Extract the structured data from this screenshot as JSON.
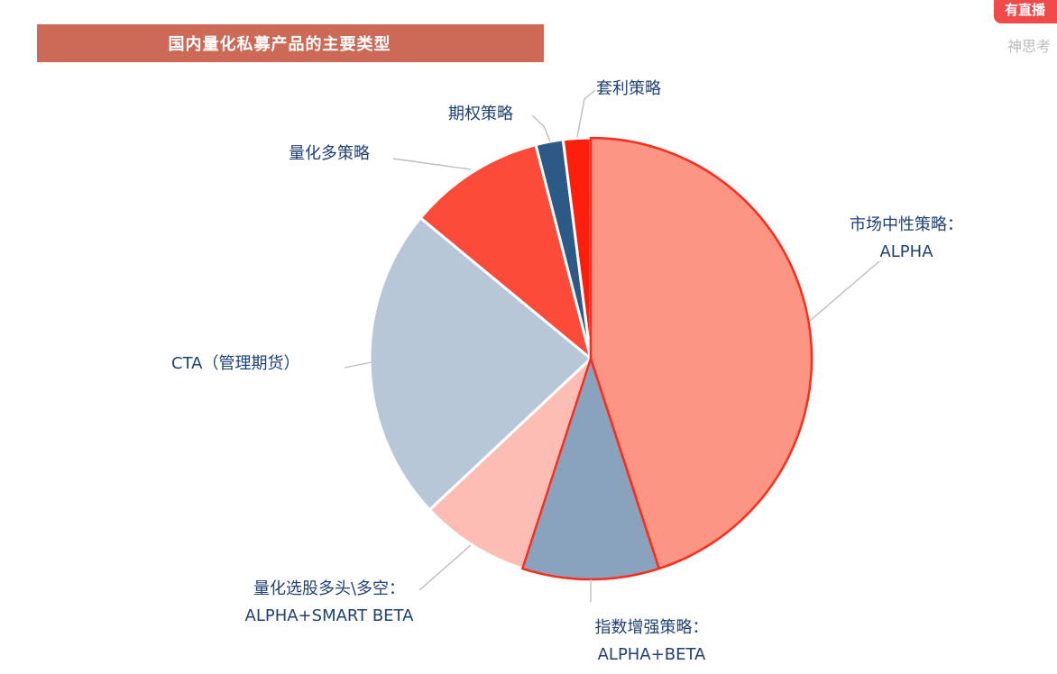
{
  "header": {
    "title": "国内量化私募产品的主要类型",
    "badge_text": "有直播",
    "badge_sub": "神思考"
  },
  "chart_data": {
    "type": "pie",
    "title": "国内量化私募产品的主要类型",
    "slices": [
      {
        "label_line1": "市场中性策略：",
        "label_line2": "ALPHA",
        "value": 45,
        "color": "#fd9584",
        "stroke": "#ff2a1a"
      },
      {
        "label_line1": "指数增强策略：",
        "label_line2": "ALPHA+BETA",
        "value": 10,
        "color": "#8aa3bd",
        "stroke": "#ff2a1a"
      },
      {
        "label_line1": "量化选股多头\\多空：",
        "label_line2": "ALPHA+SMART  BETA",
        "value": 8,
        "color": "#fdbdb5",
        "stroke": "#ffffff"
      },
      {
        "label_line1": "CTA（管理期货）",
        "label_line2": "",
        "value": 23,
        "color": "#b8c7d8",
        "stroke": "#ffffff"
      },
      {
        "label_line1": "量化多策略",
        "label_line2": "",
        "value": 10,
        "color": "#fc4b39",
        "stroke": "#ffffff"
      },
      {
        "label_line1": "期权策略",
        "label_line2": "",
        "value": 2,
        "color": "#2c5986",
        "stroke": "#ffffff"
      },
      {
        "label_line1": "套利策略",
        "label_line2": "",
        "value": 2,
        "color": "#fd1e0c",
        "stroke": "#ffffff"
      }
    ]
  }
}
